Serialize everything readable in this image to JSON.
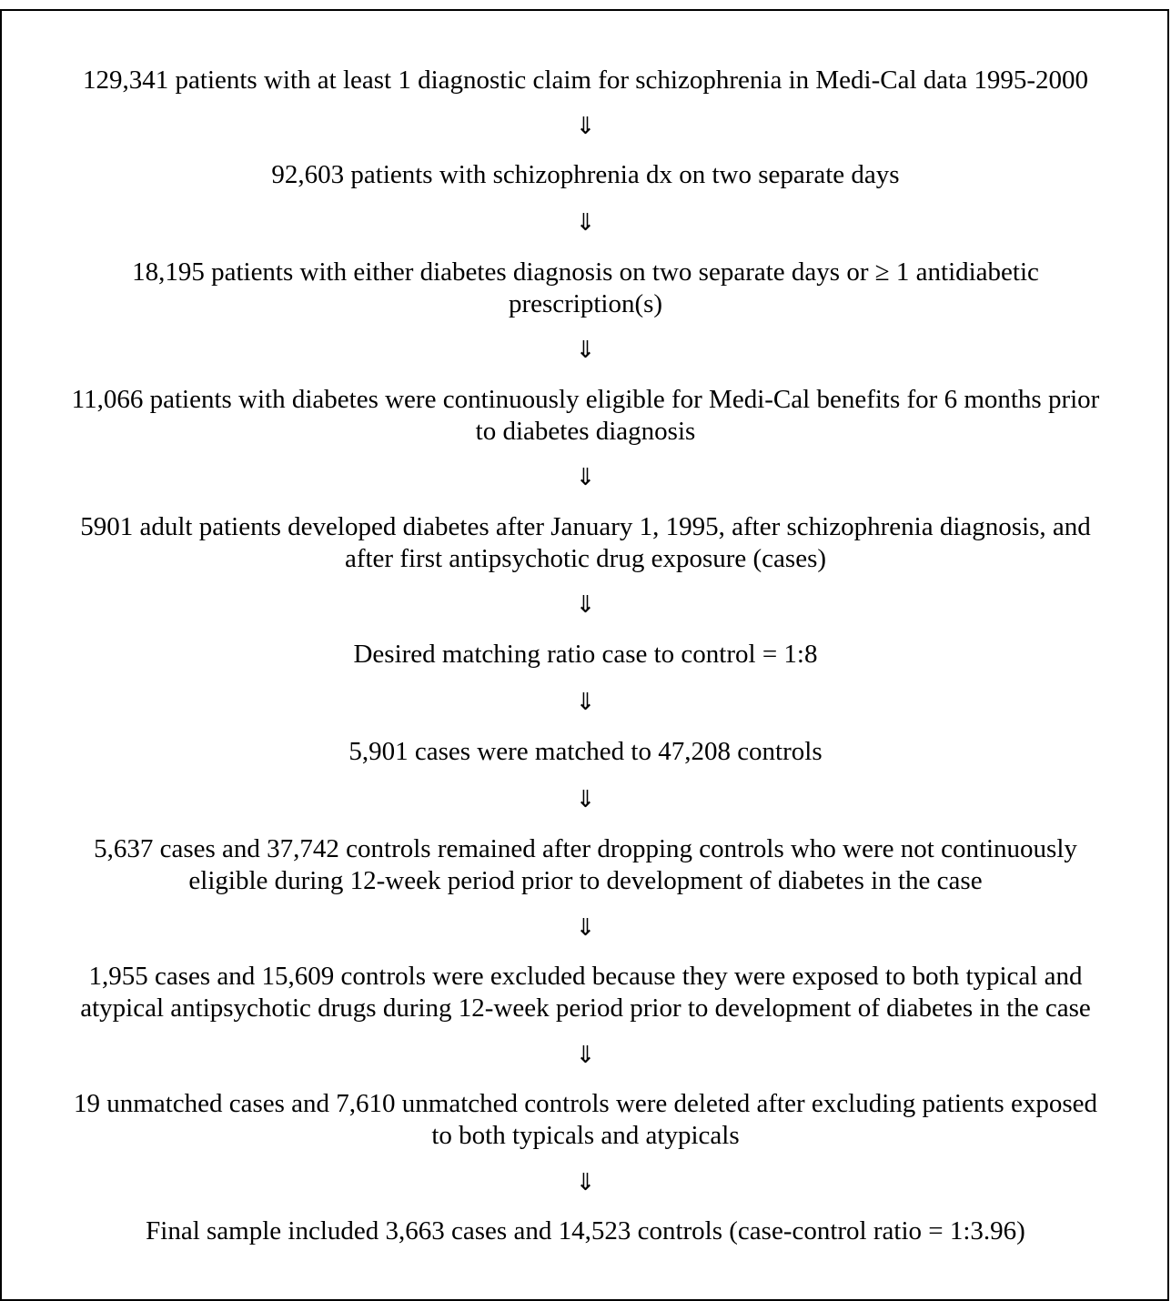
{
  "flowchart": {
    "arrow_glyph": "⇓",
    "steps": [
      {
        "lines": [
          "129,341 patients with at least 1 diagnostic claim for schizophrenia in Medi-Cal data 1995-2000"
        ]
      },
      {
        "lines": [
          "92,603 patients with schizophrenia dx on two separate days"
        ]
      },
      {
        "lines": [
          "18,195 patients with either diabetes diagnosis on two separate days or ≥ 1 antidiabetic",
          "prescription(s)"
        ]
      },
      {
        "lines": [
          "11,066 patients with diabetes were continuously eligible for Medi-Cal benefits for 6 months prior",
          "to diabetes diagnosis"
        ]
      },
      {
        "lines": [
          "5901 adult patients developed diabetes after January 1, 1995, after schizophrenia diagnosis, and",
          "after first antipsychotic drug exposure (cases)"
        ]
      },
      {
        "lines": [
          "Desired matching ratio case to control = 1:8"
        ]
      },
      {
        "lines": [
          "5,901 cases were matched to 47,208 controls"
        ]
      },
      {
        "lines": [
          "5,637 cases and 37,742 controls remained after dropping controls who were not continuously",
          "eligible during 12-week period prior to development of diabetes in the case"
        ]
      },
      {
        "lines": [
          "1,955 cases and 15,609 controls were excluded because they were exposed to both typical and",
          "atypical antipsychotic drugs during 12-week period prior to development of diabetes in the case"
        ]
      },
      {
        "lines": [
          "19 unmatched cases and 7,610 unmatched controls were deleted after excluding patients exposed",
          "to both typicals and atypicals"
        ]
      },
      {
        "lines": [
          "Final sample included 3,663 cases and 14,523 controls (case-control ratio = 1:3.96)"
        ]
      }
    ]
  }
}
